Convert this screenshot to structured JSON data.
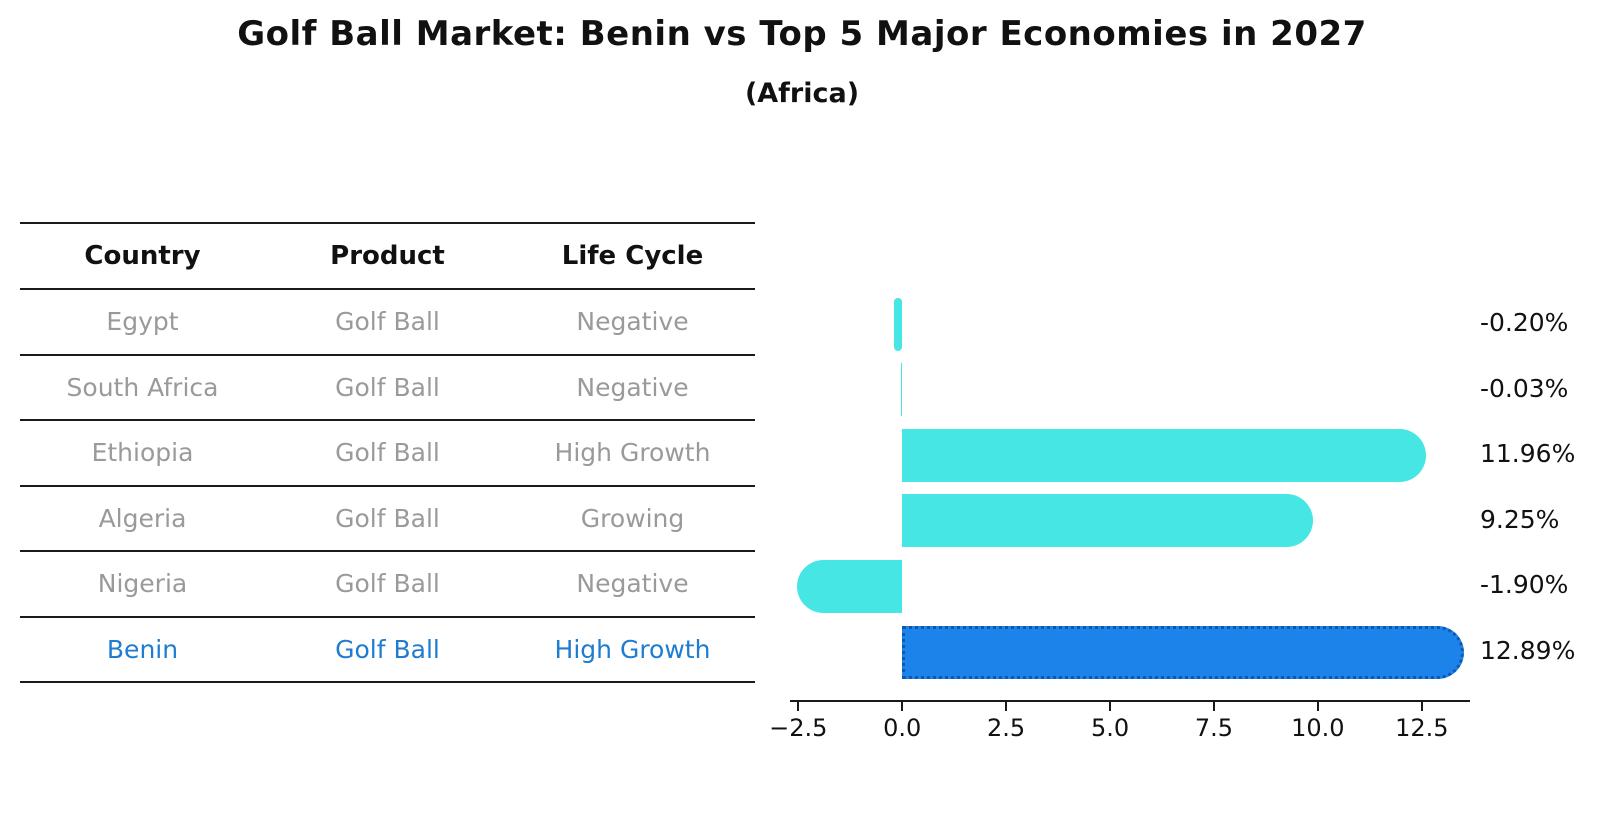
{
  "header": {
    "title": "Golf Ball Market: Benin vs Top 5 Major Economies in 2027",
    "subtitle": "(Africa)"
  },
  "table": {
    "columns": [
      "Country",
      "Product",
      "Life Cycle"
    ],
    "rows": [
      {
        "country": "Egypt",
        "product": "Golf Ball",
        "life_cycle": "Negative",
        "highlight": false
      },
      {
        "country": "South Africa",
        "product": "Golf Ball",
        "life_cycle": "Negative",
        "highlight": false
      },
      {
        "country": "Ethiopia",
        "product": "Golf Ball",
        "life_cycle": "High Growth",
        "highlight": false
      },
      {
        "country": "Algeria",
        "product": "Golf Ball",
        "life_cycle": "Growing",
        "highlight": false
      },
      {
        "country": "Nigeria",
        "product": "Golf Ball",
        "life_cycle": "Negative",
        "highlight": false
      },
      {
        "country": "Benin",
        "product": "Golf Ball",
        "life_cycle": "High Growth",
        "highlight": true
      }
    ]
  },
  "chart_data": {
    "type": "bar",
    "orientation": "horizontal",
    "title": "Golf Ball Market: Benin vs Top 5 Major Economies in 2027",
    "subtitle": "(Africa)",
    "categories": [
      "Egypt",
      "South Africa",
      "Ethiopia",
      "Algeria",
      "Nigeria",
      "Benin"
    ],
    "values": [
      -0.2,
      -0.03,
      11.96,
      9.25,
      -1.9,
      12.89
    ],
    "value_labels": [
      "-0.20%",
      "-0.03%",
      "11.96%",
      "9.25%",
      "-1.90%",
      "12.89%"
    ],
    "highlight_category": "Benin",
    "xlabel": "",
    "ylabel": "",
    "xlim": [
      -2.7,
      13.66
    ],
    "x_tick_values": [
      -2.5,
      0,
      2.5,
      5,
      7.5,
      10,
      12.5
    ],
    "x_tick_labels": [
      "−2.5",
      "0.0",
      "2.5",
      "5.0",
      "7.5",
      "10.0",
      "12.5"
    ],
    "grid": false,
    "legend": false
  },
  "colors": {
    "bar": "#45e6e3",
    "highlight_bar": "#1c83eb",
    "highlight_bar_border": "#1057b0",
    "table_text": "#9a9a9a",
    "highlight_text": "#1e7dd0",
    "axis_line": "#1a1a1a",
    "title_text": "#111111"
  }
}
